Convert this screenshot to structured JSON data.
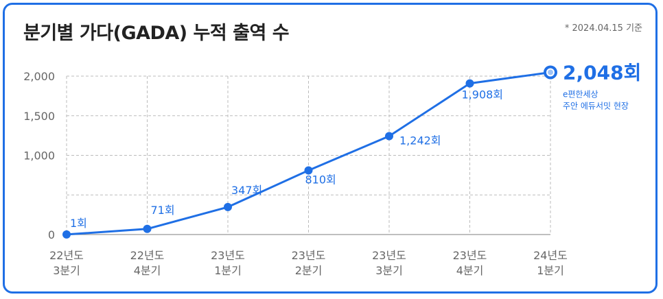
{
  "header": {
    "title": "분기별 가다(GADA) 누적 출역 수",
    "note": "* 2024.04.15 기준"
  },
  "colors": {
    "accent": "#1f6fe5",
    "grid": "#bbbbbb",
    "frame": "#1f6fe5"
  },
  "chart_data": {
    "type": "line",
    "title": "분기별 가다(GADA) 누적 출역 수",
    "categories": [
      [
        "22년도",
        "3분기"
      ],
      [
        "22년도",
        "4분기"
      ],
      [
        "23년도",
        "1분기"
      ],
      [
        "23년도",
        "2분기"
      ],
      [
        "23년도",
        "3분기"
      ],
      [
        "23년도",
        "4분기"
      ],
      [
        "24년도",
        "1분기"
      ]
    ],
    "values": [
      1,
      71,
      347,
      810,
      1242,
      1908,
      2048
    ],
    "data_labels": [
      "1회",
      "71회",
      "347회",
      "810회",
      "1,242회",
      "1,908회",
      "2,048회"
    ],
    "ylim": [
      0,
      2000
    ],
    "yticks": [
      0,
      1000,
      1500,
      2000
    ],
    "ytick_labels": [
      "0",
      "1,000",
      "1,500",
      "2,000"
    ],
    "grid": true,
    "final_annotation": [
      "e편한세상",
      "주안 에듀서밋 현장"
    ]
  }
}
